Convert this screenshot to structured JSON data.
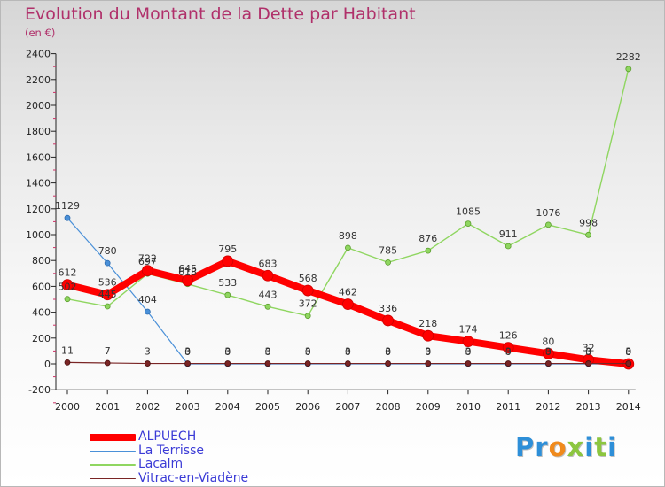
{
  "chart_data": {
    "type": "line",
    "title": "Evolution du Montant de la Dette par Habitant",
    "subtitle": "(en €)",
    "x": [
      "2000",
      "2001",
      "2002",
      "2003",
      "2004",
      "2005",
      "2006",
      "2007",
      "2008",
      "2009",
      "2010",
      "2011",
      "2012",
      "2013",
      "2014"
    ],
    "ylim": [
      -200,
      2400
    ],
    "yticks": [
      -200,
      0,
      200,
      400,
      600,
      800,
      1000,
      1200,
      1400,
      1600,
      1800,
      2000,
      2200,
      2400
    ],
    "grid": false,
    "legend_position": "bottom-left",
    "series": [
      {
        "name": "ALPUECH",
        "color": "#ff0000",
        "values": [
          612,
          536,
          722,
          645,
          795,
          683,
          568,
          462,
          336,
          218,
          174,
          126,
          80,
          32,
          0
        ],
        "labels": [
          "612",
          "536",
          "722",
          "645",
          "795",
          "683",
          "568",
          "462",
          "336",
          "218",
          "174",
          "126",
          "80",
          "32",
          "0"
        ]
      },
      {
        "name": "La Terrisse",
        "color": "#4a90d8",
        "values": [
          1129,
          780,
          404,
          0,
          0,
          0,
          0,
          0,
          0,
          0,
          0,
          0,
          0,
          0,
          0
        ],
        "labels": [
          "1129",
          "780",
          "404",
          "0",
          "0",
          "0",
          "0",
          "0",
          "0",
          "0",
          "0",
          "0",
          "0",
          "0",
          "0"
        ]
      },
      {
        "name": "Lacalm",
        "color": "#8fd660",
        "values": [
          502,
          445,
          697,
          618,
          533,
          443,
          372,
          898,
          785,
          876,
          1085,
          911,
          1076,
          998,
          2282
        ],
        "labels": [
          "502",
          "445",
          "697",
          "618",
          "533",
          "443",
          "372",
          "898",
          "785",
          "876",
          "1085",
          "911",
          "1076",
          "998",
          "2282"
        ]
      },
      {
        "name": "Vitrac-en-Viadène",
        "color": "#7a2525",
        "values": [
          11,
          7,
          3,
          3,
          3,
          3,
          3,
          3,
          3,
          3,
          3,
          3,
          3,
          3,
          3
        ],
        "labels": [
          "11",
          "7",
          "3",
          "3",
          "3",
          "3",
          "3",
          "3",
          "3",
          "3",
          "3",
          "3",
          "3",
          "3",
          "3"
        ]
      }
    ]
  },
  "brand": {
    "letters": [
      {
        "ch": "P",
        "color": "#2e8fd8"
      },
      {
        "ch": "r",
        "color": "#2e8fd8"
      },
      {
        "ch": "o",
        "color": "#f08a1c"
      },
      {
        "ch": "x",
        "color": "#8cc63f"
      },
      {
        "ch": "i",
        "color": "#2e8fd8"
      },
      {
        "ch": "t",
        "color": "#8cc63f"
      },
      {
        "ch": "i",
        "color": "#2e8fd8"
      }
    ]
  }
}
